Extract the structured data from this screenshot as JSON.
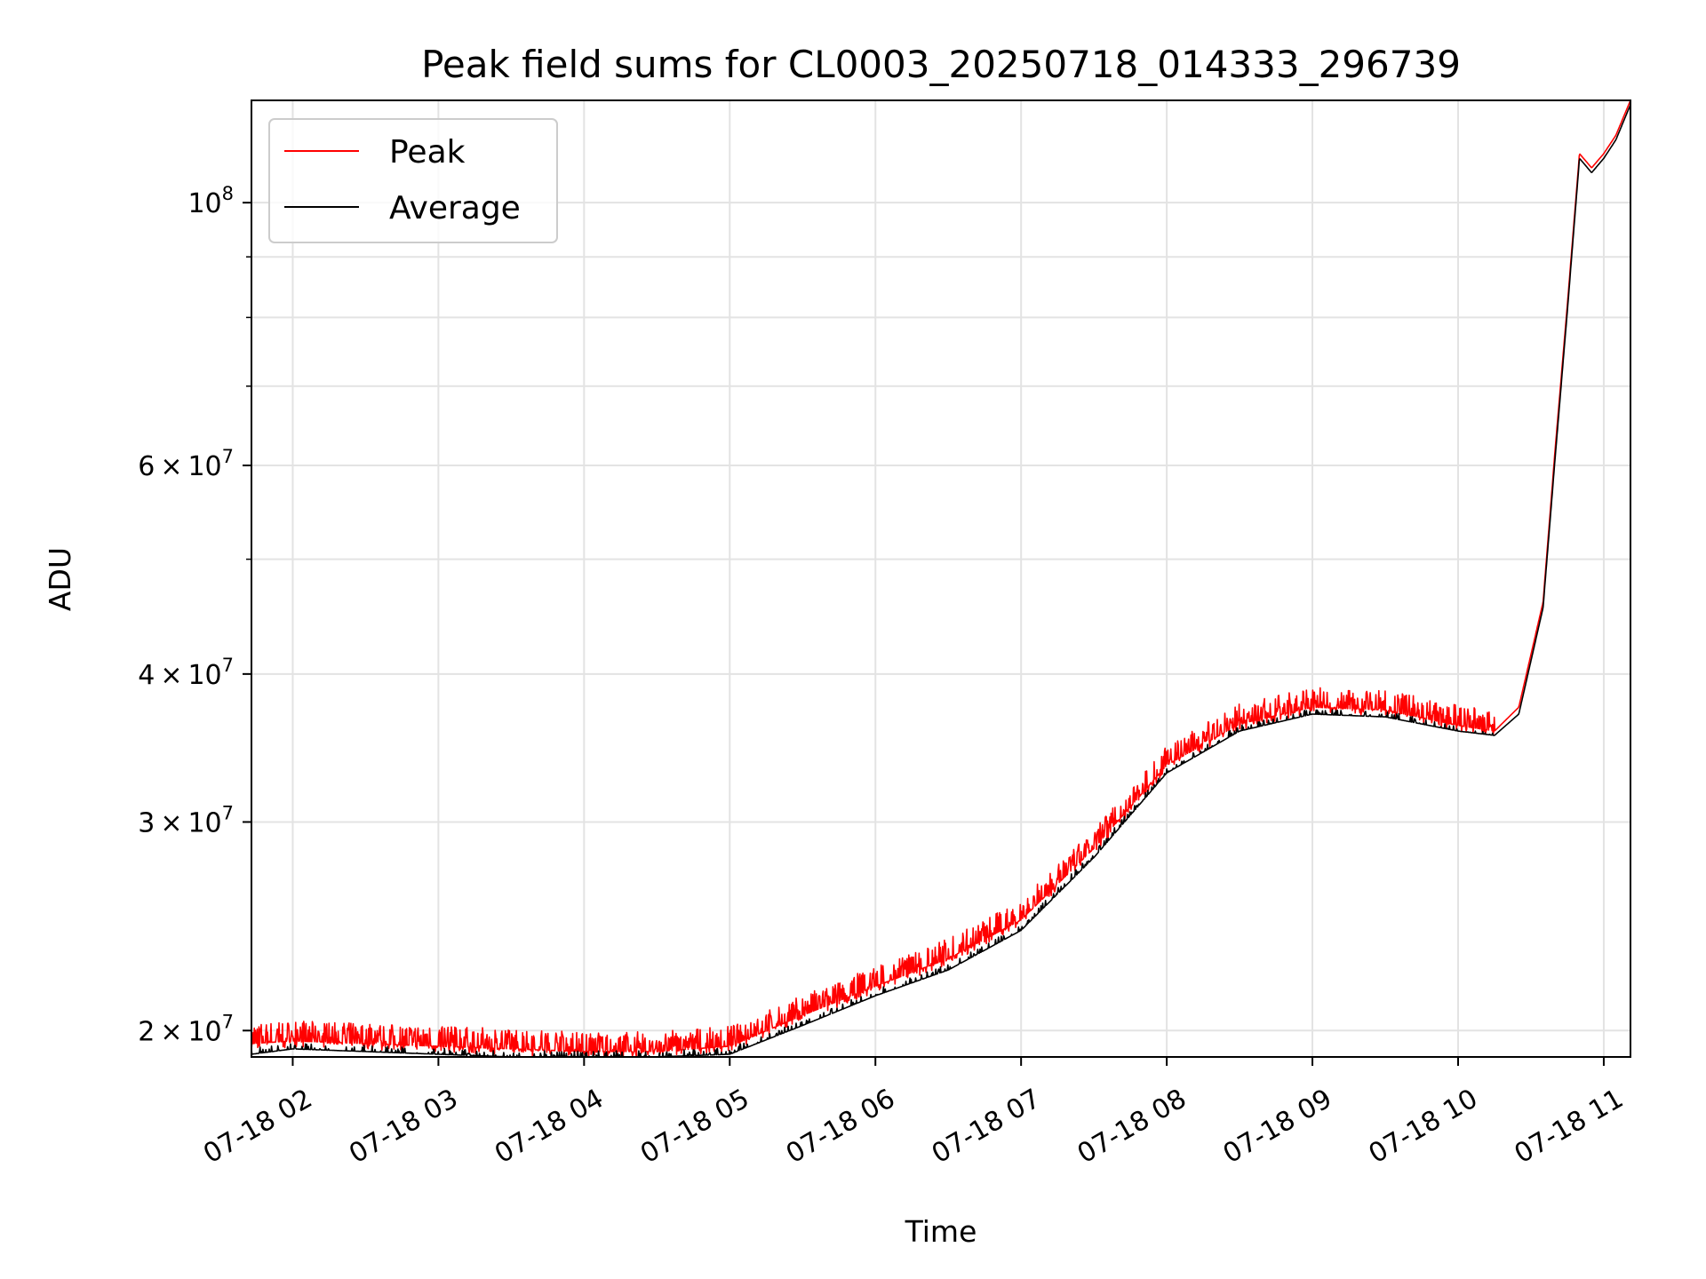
{
  "chart_data": {
    "type": "line",
    "title": "Peak field sums for CL0003_20250718_014333_296739",
    "xlabel": "Time",
    "ylabel": "ADU",
    "y_scale": "log",
    "xlim": [
      "2025-07-18 01:43",
      "2025-07-18 11:11"
    ],
    "ylim": [
      19000000,
      122000000
    ],
    "grid": true,
    "legend_position": "upper-left",
    "x_ticks": [
      {
        "time": "2025-07-18 02:00",
        "label": "07-18 02"
      },
      {
        "time": "2025-07-18 03:00",
        "label": "07-18 03"
      },
      {
        "time": "2025-07-18 04:00",
        "label": "07-18 04"
      },
      {
        "time": "2025-07-18 05:00",
        "label": "07-18 05"
      },
      {
        "time": "2025-07-18 06:00",
        "label": "07-18 06"
      },
      {
        "time": "2025-07-18 07:00",
        "label": "07-18 07"
      },
      {
        "time": "2025-07-18 08:00",
        "label": "07-18 08"
      },
      {
        "time": "2025-07-18 09:00",
        "label": "07-18 09"
      },
      {
        "time": "2025-07-18 10:00",
        "label": "07-18 10"
      },
      {
        "time": "2025-07-18 11:00",
        "label": "07-18 11"
      }
    ],
    "y_ticks": [
      {
        "value": 20000000,
        "mantissa": "2",
        "exponent": "7"
      },
      {
        "value": 30000000,
        "mantissa": "3",
        "exponent": "7"
      },
      {
        "value": 40000000,
        "mantissa": "4",
        "exponent": "7"
      },
      {
        "value": 60000000,
        "mantissa": "6",
        "exponent": "7"
      },
      {
        "value": 100000000,
        "mantissa": "",
        "exponent": "8"
      }
    ],
    "y_minor_unlabeled": [
      50000000,
      70000000,
      80000000,
      90000000
    ],
    "series": [
      {
        "name": "Peak",
        "color": "#ff0000",
        "x": [
          "2025-07-18 01:43",
          "2025-07-18 02:00",
          "2025-07-18 02:30",
          "2025-07-18 03:00",
          "2025-07-18 03:30",
          "2025-07-18 04:00",
          "2025-07-18 04:30",
          "2025-07-18 05:00",
          "2025-07-18 05:30",
          "2025-07-18 06:00",
          "2025-07-18 06:30",
          "2025-07-18 07:00",
          "2025-07-18 07:30",
          "2025-07-18 08:00",
          "2025-07-18 08:30",
          "2025-07-18 09:00",
          "2025-07-18 09:30",
          "2025-07-18 10:00",
          "2025-07-18 10:15",
          "2025-07-18 10:25",
          "2025-07-18 10:35",
          "2025-07-18 10:40",
          "2025-07-18 10:45",
          "2025-07-18 10:50",
          "2025-07-18 10:55",
          "2025-07-18 11:00",
          "2025-07-18 11:05",
          "2025-07-18 11:11"
        ],
        "y": [
          19500000,
          19600000,
          19500000,
          19400000,
          19300000,
          19200000,
          19200000,
          19400000,
          20600000,
          21800000,
          23000000,
          24800000,
          28500000,
          33500000,
          36300000,
          37500000,
          37300000,
          36200000,
          35800000,
          37500000,
          46000000,
          62000000,
          82000000,
          110000000,
          107000000,
          110000000,
          114000000,
          122000000
        ],
        "spikes": {
          "amplitude_fraction": 0.04,
          "range": [
            "2025-07-18 01:43",
            "2025-07-18 10:15"
          ]
        }
      },
      {
        "name": "Average",
        "color": "#000000",
        "x": [
          "2025-07-18 01:43",
          "2025-07-18 02:00",
          "2025-07-18 02:30",
          "2025-07-18 03:00",
          "2025-07-18 03:30",
          "2025-07-18 04:00",
          "2025-07-18 04:30",
          "2025-07-18 05:00",
          "2025-07-18 05:30",
          "2025-07-18 06:00",
          "2025-07-18 06:30",
          "2025-07-18 07:00",
          "2025-07-18 07:30",
          "2025-07-18 08:00",
          "2025-07-18 08:30",
          "2025-07-18 09:00",
          "2025-07-18 09:30",
          "2025-07-18 10:00",
          "2025-07-18 10:15",
          "2025-07-18 10:25",
          "2025-07-18 10:35",
          "2025-07-18 10:40",
          "2025-07-18 10:45",
          "2025-07-18 10:50",
          "2025-07-18 10:55",
          "2025-07-18 11:00",
          "2025-07-18 11:05",
          "2025-07-18 11:11"
        ],
        "y": [
          19100000,
          19300000,
          19200000,
          19100000,
          19000000,
          19000000,
          19000000,
          19100000,
          20200000,
          21400000,
          22500000,
          24300000,
          28000000,
          33000000,
          35800000,
          37000000,
          36800000,
          35800000,
          35500000,
          37000000,
          45500000,
          61000000,
          81000000,
          109000000,
          106000000,
          109000000,
          113000000,
          121000000
        ]
      }
    ]
  }
}
